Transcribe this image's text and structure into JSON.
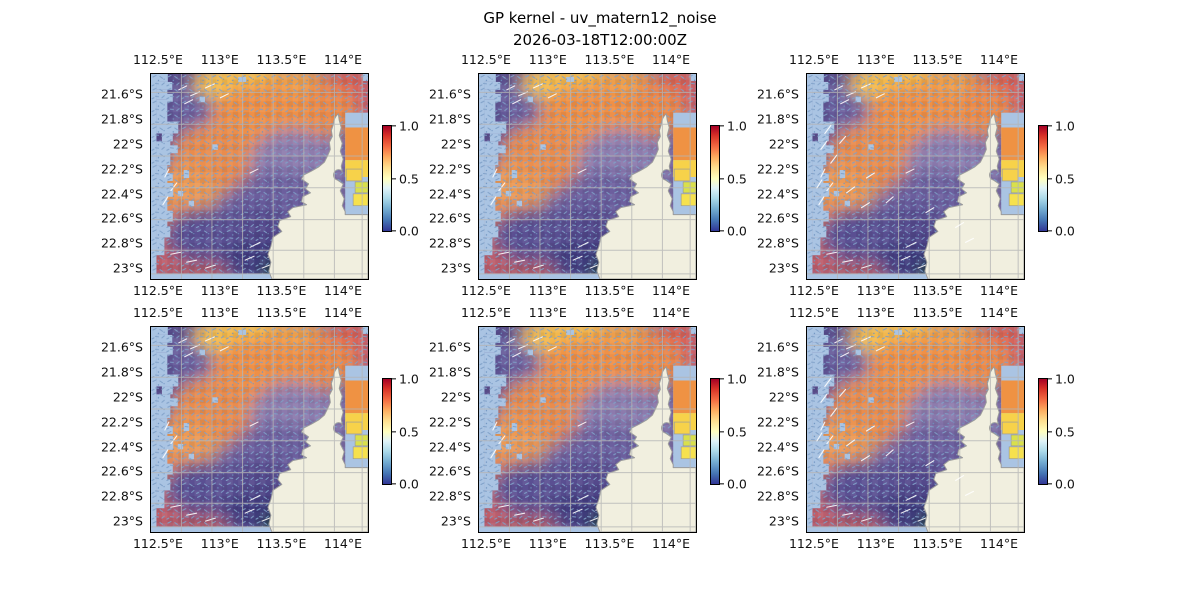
{
  "figure": {
    "title": "GP kernel - uv_matern12_noise",
    "subtitle": "2026-03-18T12:00:00Z"
  },
  "axes": {
    "x_tick_labels": [
      "112.5°E",
      "113°E",
      "113.5°E",
      "114°E"
    ],
    "y_tick_labels": [
      "21.6°S",
      "21.8°S",
      "22°S",
      "22.2°S",
      "22.4°S",
      "22.6°S",
      "22.8°S",
      "23°S"
    ]
  },
  "colorbar": {
    "tick_labels": [
      "1.0",
      "0.5",
      "0.0"
    ],
    "range_min": 0.0,
    "range_max": 1.0
  },
  "panels": [
    {
      "row": 1,
      "col": 1,
      "arrow_style": "fine-blue"
    },
    {
      "row": 1,
      "col": 2,
      "arrow_style": "fine-blue"
    },
    {
      "row": 1,
      "col": 3,
      "arrow_style": "white-prominent"
    },
    {
      "row": 2,
      "col": 1,
      "arrow_style": "fine-blue"
    },
    {
      "row": 2,
      "col": 2,
      "arrow_style": "fine-blue"
    },
    {
      "row": 2,
      "col": 3,
      "arrow_style": "white-prominent"
    }
  ],
  "colors": {
    "background": "#ffffff",
    "land": "#f1efdf",
    "coastline": "#9b9b9b",
    "masked_water": "#aac4e3",
    "gridline": "#b5b5b5",
    "frame": "#000000",
    "arrow_blue": "#7fa0c8",
    "arrow_white": "#ffffff",
    "cmap_low": "#313695",
    "cmap_mid": "#ffffbf",
    "cmap_high": "#a50026"
  },
  "chart_data": {
    "type": "heatmap",
    "title": "GP kernel - uv_matern12_noise",
    "subtitle": "2026-03-18T12:00:00Z",
    "layout": {
      "rows": 2,
      "cols": 3,
      "panel_count": 6,
      "colorbar_per_panel": true,
      "colorbar_position": "right"
    },
    "x_tick_labels": [
      "112.5°E",
      "113°E",
      "113.5°E",
      "114°E"
    ],
    "y_tick_labels": [
      "21.6°S",
      "21.8°S",
      "22°S",
      "22.2°S",
      "22.4°S",
      "22.6°S",
      "22.8°S",
      "23°S"
    ],
    "x_range_est_deg_east": [
      112.43,
      114.22
    ],
    "y_range_est_deg_south": [
      21.46,
      23.11
    ],
    "colorbar": {
      "ticks": [
        1.0,
        0.5,
        0.0
      ],
      "range": [
        0.0,
        1.0
      ]
    },
    "overlays": [
      "pcolormesh magnitude field",
      "quiver vector arrows",
      "land mask",
      "lat-lon gridlines"
    ],
    "grid": true
  }
}
